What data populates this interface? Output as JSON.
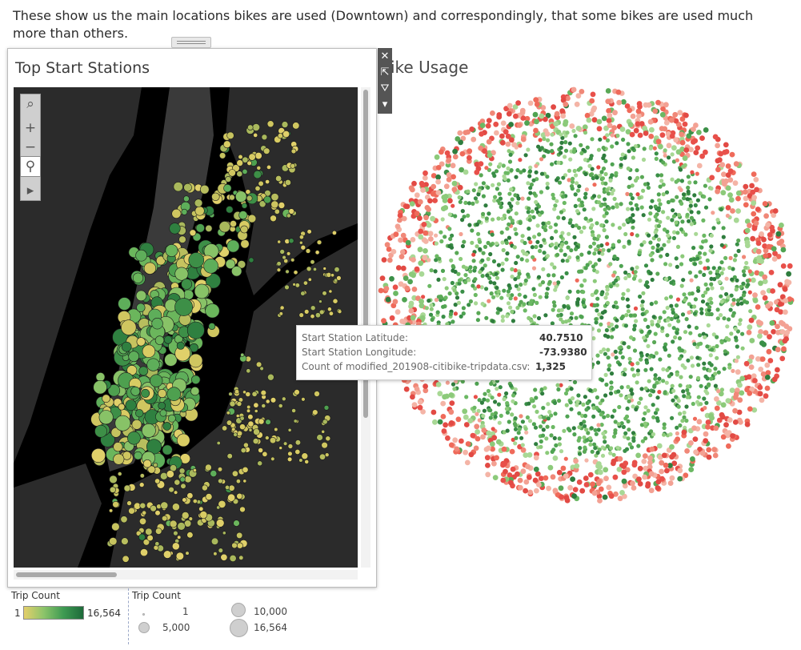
{
  "description": "These show us the main locations bikes are used (Downtown) and correspondingly, that some bikes are used much more than others.",
  "bubble_panel": {
    "title_visible": "ike Usage"
  },
  "map_panel": {
    "title": "Top Start Stations",
    "tools": [
      {
        "icon": "search-icon",
        "glyph": "⌕"
      },
      {
        "icon": "zoom-in-icon",
        "glyph": "+"
      },
      {
        "icon": "zoom-out-icon",
        "glyph": "−"
      },
      {
        "icon": "pin-icon",
        "glyph": "⚲"
      },
      {
        "icon": "expand-arrow-icon",
        "glyph": "▸"
      }
    ]
  },
  "panel_toolbar": [
    {
      "icon": "close-icon",
      "glyph": "✕"
    },
    {
      "icon": "open-external-icon",
      "glyph": "⇱"
    },
    {
      "icon": "filter-icon",
      "glyph": "⛛"
    },
    {
      "icon": "more-options-icon",
      "glyph": "▾"
    }
  ],
  "tooltip": {
    "rows": [
      {
        "label": "Start Station Latitude:",
        "value": "40.7510"
      },
      {
        "label": "Start Station Longitude:",
        "value": "-73.9380"
      },
      {
        "label": "Count of modified_201908-citibike-tripdata.csv:",
        "value": "1,325"
      }
    ]
  },
  "legend_color": {
    "title": "Trip Count",
    "min": "1",
    "max": "16,564"
  },
  "legend_size": {
    "title": "Trip Count",
    "items": [
      {
        "label": "1"
      },
      {
        "label": "5,000"
      },
      {
        "label": "10,000"
      },
      {
        "label": "16,564"
      }
    ]
  },
  "colors": {
    "map_bg": "#000000",
    "ramp_low": "#e4cf6a",
    "ramp_high": "#1d6a3a",
    "usage_high": "#e8504a",
    "usage_low": "#3a8f47"
  }
}
